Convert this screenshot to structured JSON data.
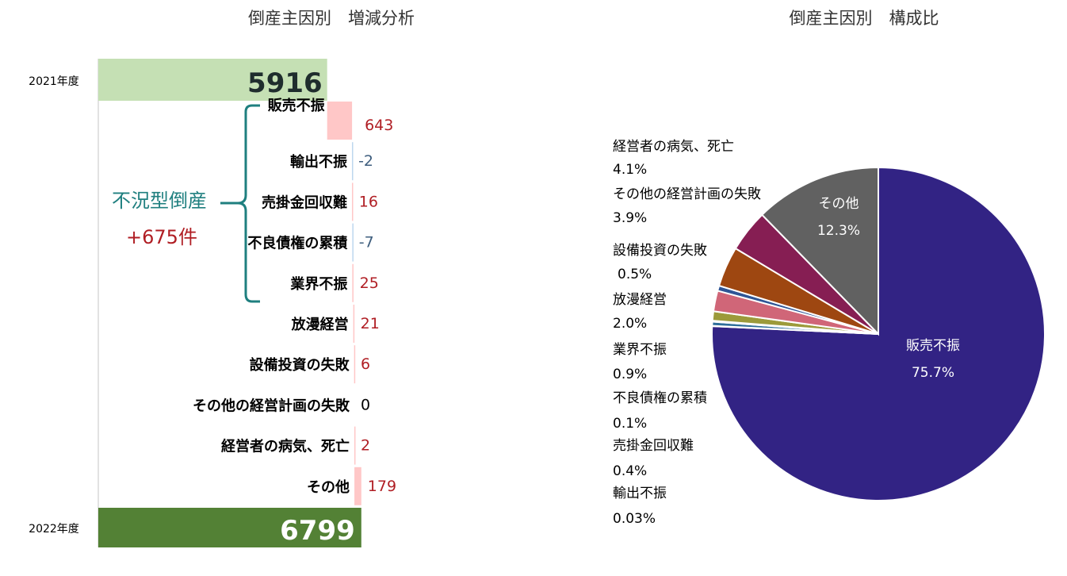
{
  "chart_data": [
    {
      "type": "waterfall",
      "title": "倒産主因別　増減分析",
      "start": {
        "label": "2021年度",
        "value": 5916
      },
      "end": {
        "label": "2022年度",
        "value": 6799
      },
      "items": [
        {
          "category": "販売不振",
          "value": 643,
          "label": "643"
        },
        {
          "category": "輸出不振",
          "value": -2,
          "label": "-2"
        },
        {
          "category": "売掛金回収難",
          "value": 16,
          "label": "16"
        },
        {
          "category": "不良債権の累積",
          "value": -7,
          "label": "-7"
        },
        {
          "category": "業界不振",
          "value": 25,
          "label": "25"
        },
        {
          "category": "放漫経営",
          "value": 21,
          "label": "21"
        },
        {
          "category": "設備投資の失敗",
          "value": 6,
          "label": "6"
        },
        {
          "category": "その他の経営計画の失敗",
          "value": 0,
          "label": "0"
        },
        {
          "category": "経営者の病気、死亡",
          "value": 2,
          "label": "2"
        },
        {
          "category": "その他",
          "value": 179,
          "label": "179"
        }
      ],
      "group": {
        "label": "不況型倒産",
        "value": "+675件"
      },
      "colors": {
        "start": "#C5E0B4",
        "end": "#538135",
        "increase": "#FFC7C7",
        "decrease": "#BDD7EE",
        "bracket": "#1F7F7F"
      }
    },
    {
      "type": "pie",
      "title": "倒産主因別　構成比",
      "slices": [
        {
          "name": "販売不振",
          "value": 75.7,
          "label": "75.7%",
          "color": "#322384"
        },
        {
          "name": "輸出不振",
          "value": 0.03,
          "label": "0.03%",
          "color": "#4A7FB5"
        },
        {
          "name": "売掛金回収難",
          "value": 0.4,
          "label": "0.4%",
          "color": "#2E6E9A"
        },
        {
          "name": "不良債権の累積",
          "value": 0.1,
          "label": "0.1%",
          "color": "#7F9FBF"
        },
        {
          "name": "業界不振",
          "value": 0.9,
          "label": "0.9%",
          "color": "#9C9A3A"
        },
        {
          "name": "放漫経営",
          "value": 2.0,
          "label": "2.0%",
          "color": "#D06678"
        },
        {
          "name": "設備投資の失敗",
          "value": 0.5,
          "label": "0.5%",
          "color": "#2E5596"
        },
        {
          "name": "その他の経営計画の失敗",
          "value": 3.9,
          "label": "3.9%",
          "color": "#9E4711"
        },
        {
          "name": "経営者の病気、死亡",
          "value": 4.1,
          "label": "4.1%",
          "color": "#861E53"
        },
        {
          "name": "その他",
          "value": 12.3,
          "label": "12.3%",
          "color": "#616161"
        }
      ]
    }
  ]
}
